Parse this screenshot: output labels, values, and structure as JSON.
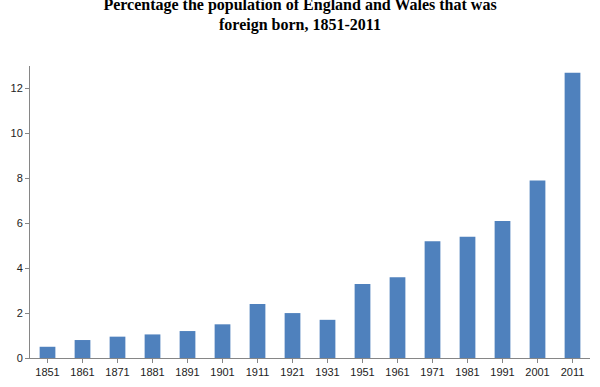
{
  "chart_data": {
    "type": "bar",
    "title": "Percentage the population of England and Wales that was foreign born, 1851-2011",
    "categories": [
      "1851",
      "1861",
      "1871",
      "1881",
      "1891",
      "1901",
      "1911",
      "1921",
      "1931",
      "1951",
      "1961",
      "1971",
      "1981",
      "1991",
      "2001",
      "2011"
    ],
    "values": [
      0.5,
      0.8,
      0.95,
      1.05,
      1.2,
      1.5,
      2.4,
      2.0,
      1.7,
      3.3,
      3.6,
      5.2,
      5.4,
      6.1,
      7.9,
      12.7
    ],
    "color": "#4f81bd",
    "ylim": [
      0,
      13
    ],
    "yticks": [
      0,
      2,
      4,
      6,
      8,
      10,
      12
    ],
    "grid": false
  }
}
